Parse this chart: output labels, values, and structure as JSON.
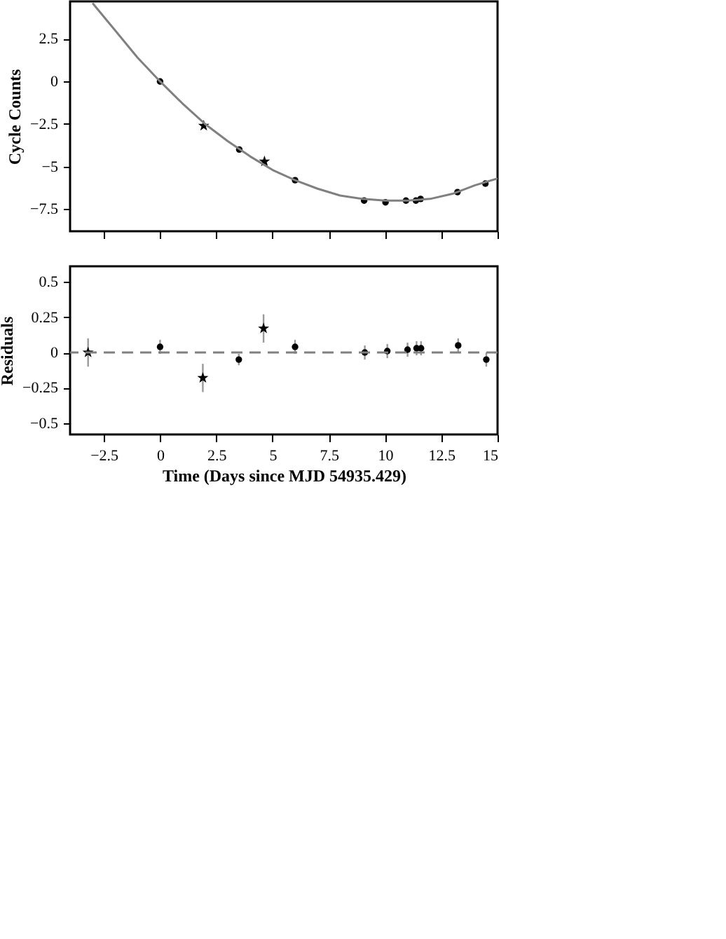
{
  "chart_data": [
    {
      "type": "scatter",
      "ylabel": "Cycle Counts",
      "xlim": [
        -4,
        15
      ],
      "xticks": [
        -2.5,
        0,
        2.5,
        5,
        7.5,
        10,
        12.5,
        15
      ],
      "ylim": [
        -8.8,
        4.7
      ],
      "yticks": [
        -7.5,
        -5,
        -2.5,
        0,
        2.5
      ],
      "tick_labels": "y",
      "series": [
        {
          "color": "#000000",
          "marker": "circle",
          "x": [
            0,
            3.52,
            6.0,
            9.07,
            10.02,
            10.93,
            11.37,
            11.58,
            13.22,
            14.46
          ],
          "values": [
            0,
            -4.0,
            -5.8,
            -7.0,
            -7.1,
            -7.0,
            -7.0,
            -6.9,
            -6.5,
            -6.0
          ]
        },
        {
          "color": "#000000",
          "marker": "star",
          "x": [
            1.94,
            4.64
          ],
          "values": [
            -2.6,
            -4.7
          ]
        },
        {
          "type": "line",
          "color": "#808080",
          "x": [
            -3,
            -2,
            -1,
            0,
            1,
            2,
            3,
            4,
            5,
            6,
            7,
            8,
            9,
            10,
            11,
            12,
            13,
            14,
            15
          ],
          "values": [
            4.6,
            3.0,
            1.4,
            0,
            -1.3,
            -2.5,
            -3.5,
            -4.4,
            -5.2,
            -5.8,
            -6.3,
            -6.7,
            -6.9,
            -7.0,
            -7.0,
            -6.9,
            -6.6,
            -6.1,
            -5.7
          ]
        }
      ]
    },
    {
      "type": "scatter",
      "xlabel": "Time (Days since MJD 54935.429)",
      "ylabel": "Residuals",
      "xlim": [
        -4,
        15
      ],
      "xticks": [
        -2.5,
        0,
        2.5,
        5,
        7.5,
        10,
        12.5,
        15
      ],
      "ylim": [
        -0.58,
        0.61
      ],
      "yticks": [
        -0.5,
        -0.25,
        0,
        0.25,
        0.5
      ],
      "series": [
        {
          "color": "#000000",
          "marker": "circle",
          "x": [
            0,
            3.5,
            6.0,
            9.1,
            10.1,
            11.0,
            11.4,
            11.6,
            13.25,
            14.5
          ],
          "values": [
            0.04,
            -0.05,
            0.04,
            0.0,
            0.01,
            0.02,
            0.03,
            0.03,
            0.05,
            -0.05
          ],
          "errors": [
            0.05,
            0.04,
            0.05,
            0.05,
            0.05,
            0.05,
            0.05,
            0.05,
            0.05,
            0.05
          ]
        },
        {
          "color": "#000000",
          "marker": "star",
          "x": [
            -3.2,
            1.9,
            4.6
          ],
          "values": [
            0.0,
            -0.18,
            0.17
          ],
          "errors": [
            0.1,
            0.1,
            0.1
          ]
        }
      ],
      "ref_lines": [
        {
          "axis": "y",
          "value": 0,
          "color": "#808080",
          "line_style": "dashed"
        }
      ]
    }
  ]
}
